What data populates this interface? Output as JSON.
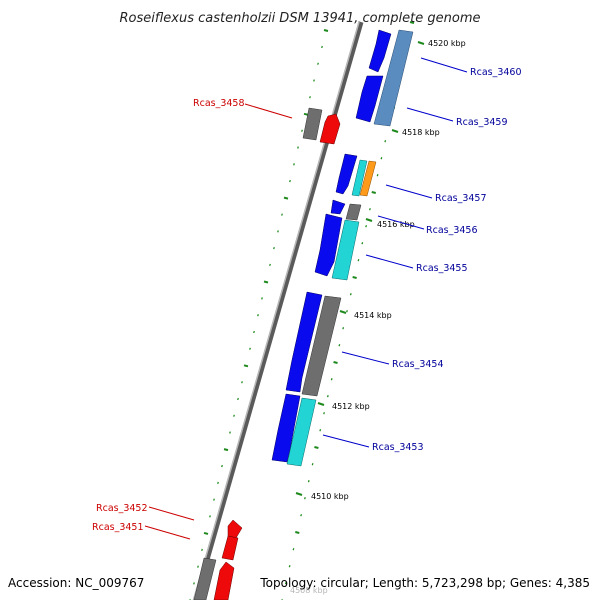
{
  "title": "Roseiflexus castenholzii DSM 13941, complete genome",
  "footer": {
    "accession": "Accession: NC_009767",
    "topology": "Topology: circular; Length: 5,723,298 bp; Genes: 4,385"
  },
  "colors": {
    "forward": "#0a0aee",
    "reverse": "#ee0a0a",
    "grey": "#6e6e6e",
    "cyan": "#22d4d4",
    "steel": "#5a8cc0",
    "orange": "#ff9a1a",
    "tick": "#1e8a1e",
    "axis": "#8a8a8a",
    "label_blue": "#00009a",
    "label_red": "#cc0000"
  },
  "ticks": [
    {
      "label": "4520 kbp"
    },
    {
      "label": "4518 kbp"
    },
    {
      "label": "4516 kbp"
    },
    {
      "label": "4514 kbp"
    },
    {
      "label": "4512 kbp"
    },
    {
      "label": "4510 kbp"
    },
    {
      "label": "4508 kbp"
    }
  ],
  "genes": [
    {
      "label": "Rcas_3460",
      "strand": "forward"
    },
    {
      "label": "Rcas_3459",
      "strand": "forward"
    },
    {
      "label": "Rcas_3458",
      "strand": "reverse"
    },
    {
      "label": "Rcas_3457",
      "strand": "forward"
    },
    {
      "label": "Rcas_3456",
      "strand": "forward"
    },
    {
      "label": "Rcas_3455",
      "strand": "forward"
    },
    {
      "label": "Rcas_3454",
      "strand": "forward"
    },
    {
      "label": "Rcas_3453",
      "strand": "forward"
    },
    {
      "label": "Rcas_3452",
      "strand": "reverse"
    },
    {
      "label": "Rcas_3451",
      "strand": "reverse"
    }
  ]
}
